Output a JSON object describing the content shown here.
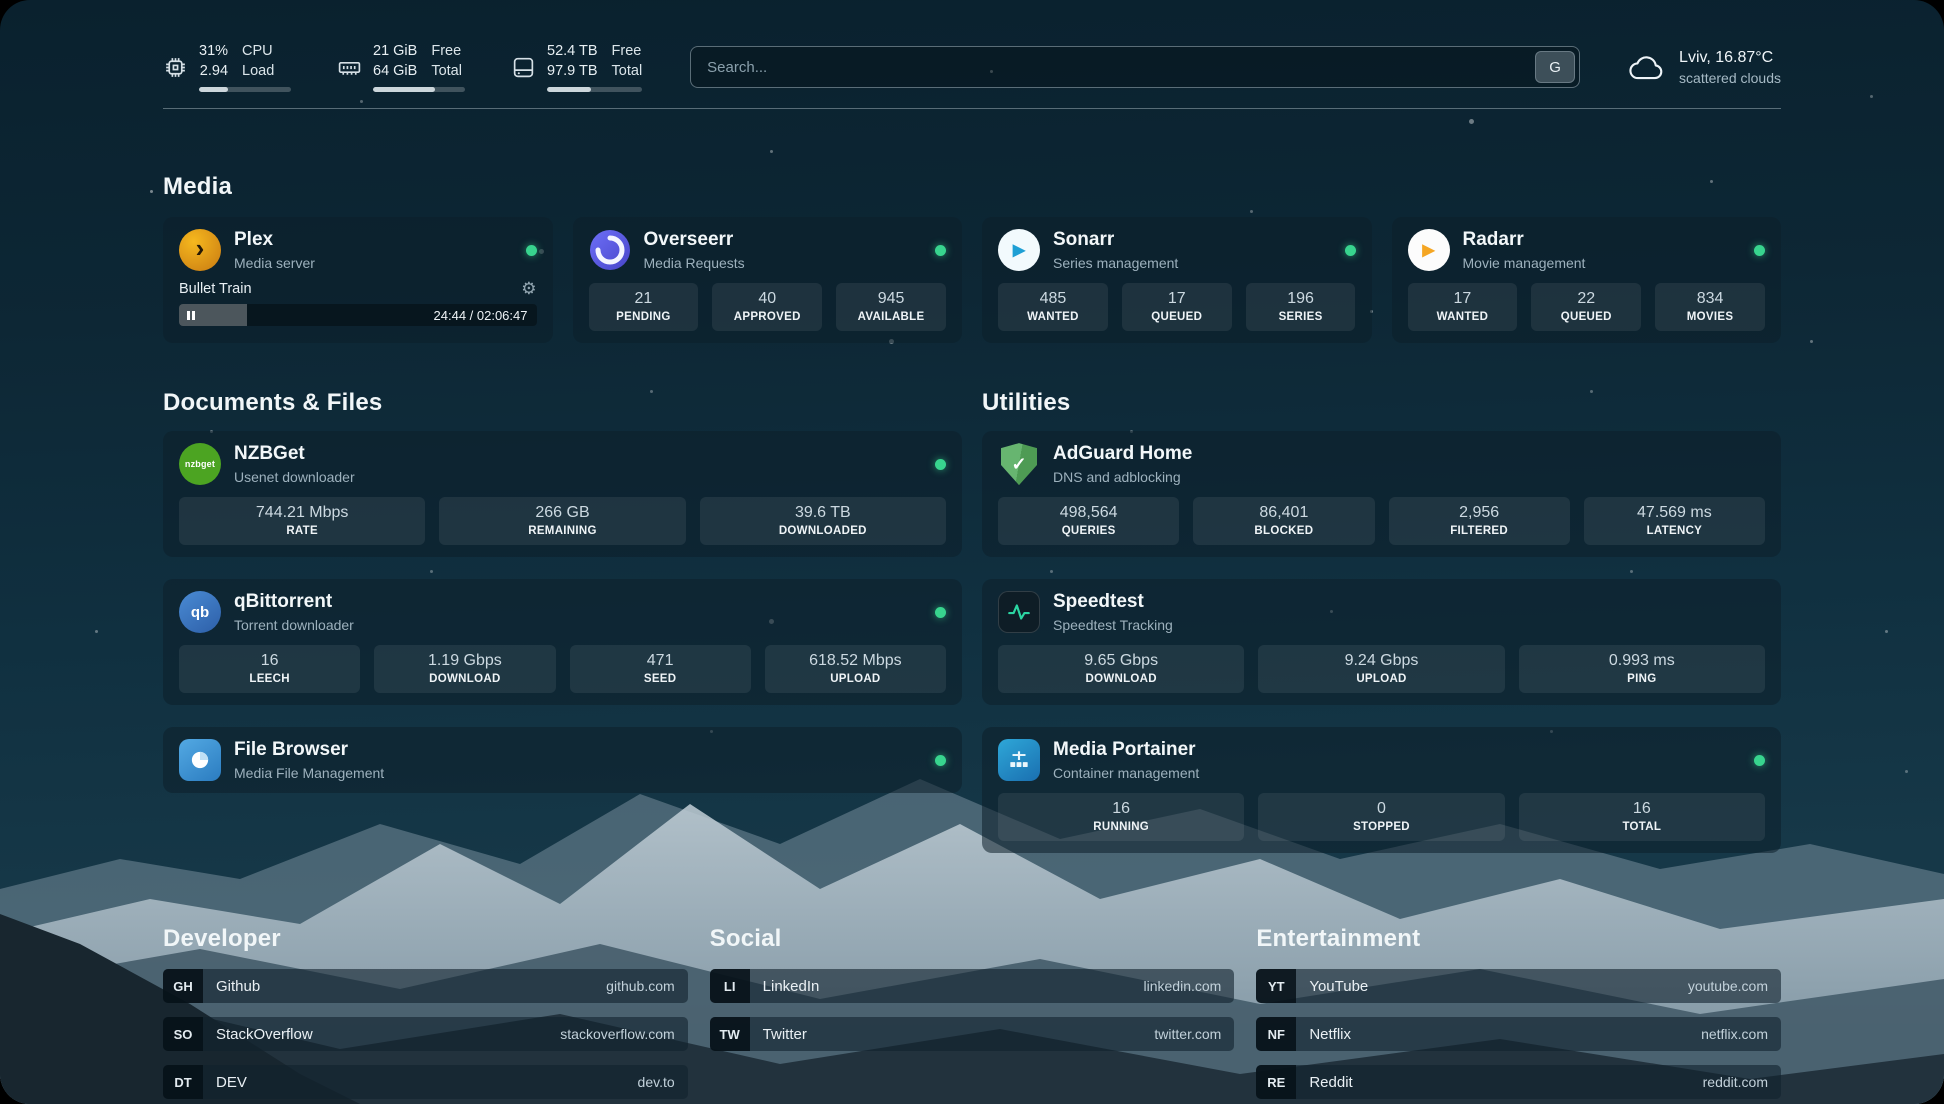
{
  "topbar": {
    "cpu": {
      "percent": "31%",
      "load": "2.94",
      "label1": "CPU",
      "label2": "Load",
      "progress": 31
    },
    "memory": {
      "free": "21 GiB",
      "total": "64 GiB",
      "label1": "Free",
      "label2": "Total",
      "progress": 67
    },
    "disk": {
      "free": "52.4 TB",
      "total": "97.9 TB",
      "label1": "Free",
      "label2": "Total",
      "progress": 46
    },
    "search": {
      "placeholder": "Search...",
      "button_label": "G"
    },
    "weather": {
      "location": "Lviv, 16.87°C",
      "condition": "scattered clouds"
    }
  },
  "sections": {
    "media": {
      "title": "Media"
    },
    "documents": {
      "title": "Documents & Files"
    },
    "utilities": {
      "title": "Utilities"
    },
    "developer": {
      "title": "Developer"
    },
    "social": {
      "title": "Social"
    },
    "entertainment": {
      "title": "Entertainment"
    }
  },
  "icons": {
    "gear": "⚙",
    "play": "▶",
    "chevron": "›",
    "check": "✓"
  },
  "services": {
    "plex": {
      "name": "Plex",
      "desc": "Media server",
      "now_playing": "Bullet Train",
      "time": "24:44 / 02:06:47",
      "progress": 19
    },
    "overseerr": {
      "name": "Overseerr",
      "desc": "Media Requests",
      "stats": [
        {
          "value": "21",
          "label": "PENDING"
        },
        {
          "value": "40",
          "label": "APPROVED"
        },
        {
          "value": "945",
          "label": "AVAILABLE"
        }
      ]
    },
    "sonarr": {
      "name": "Sonarr",
      "desc": "Series management",
      "stats": [
        {
          "value": "485",
          "label": "WANTED"
        },
        {
          "value": "17",
          "label": "QUEUED"
        },
        {
          "value": "196",
          "label": "SERIES"
        }
      ]
    },
    "radarr": {
      "name": "Radarr",
      "desc": "Movie management",
      "stats": [
        {
          "value": "17",
          "label": "WANTED"
        },
        {
          "value": "22",
          "label": "QUEUED"
        },
        {
          "value": "834",
          "label": "MOVIES"
        }
      ]
    },
    "nzbget": {
      "name": "NZBGet",
      "desc": "Usenet downloader",
      "icon_text": "nzbget",
      "stats": [
        {
          "value": "744.21 Mbps",
          "label": "RATE"
        },
        {
          "value": "266 GB",
          "label": "REMAINING"
        },
        {
          "value": "39.6 TB",
          "label": "DOWNLOADED"
        }
      ]
    },
    "qbittorrent": {
      "name": "qBittorrent",
      "desc": "Torrent downloader",
      "icon_text": "qb",
      "stats": [
        {
          "value": "16",
          "label": "LEECH"
        },
        {
          "value": "1.19 Gbps",
          "label": "DOWNLOAD"
        },
        {
          "value": "471",
          "label": "SEED"
        },
        {
          "value": "618.52 Mbps",
          "label": "UPLOAD"
        }
      ]
    },
    "filebrowser": {
      "name": "File Browser",
      "desc": "Media File Management"
    },
    "adguard": {
      "name": "AdGuard Home",
      "desc": "DNS and adblocking",
      "stats": [
        {
          "value": "498,564",
          "label": "QUERIES"
        },
        {
          "value": "86,401",
          "label": "BLOCKED"
        },
        {
          "value": "2,956",
          "label": "FILTERED"
        },
        {
          "value": "47.569 ms",
          "label": "LATENCY"
        }
      ]
    },
    "speedtest": {
      "name": "Speedtest",
      "desc": "Speedtest Tracking",
      "stats": [
        {
          "value": "9.65 Gbps",
          "label": "DOWNLOAD"
        },
        {
          "value": "9.24 Gbps",
          "label": "UPLOAD"
        },
        {
          "value": "0.993 ms",
          "label": "PING"
        }
      ]
    },
    "portainer": {
      "name": "Media Portainer",
      "desc": "Container management",
      "stats": [
        {
          "value": "16",
          "label": "RUNNING"
        },
        {
          "value": "0",
          "label": "STOPPED"
        },
        {
          "value": "16",
          "label": "TOTAL"
        }
      ]
    }
  },
  "bookmarks": {
    "developer": [
      {
        "abbr": "GH",
        "name": "Github",
        "url": "github.com"
      },
      {
        "abbr": "SO",
        "name": "StackOverflow",
        "url": "stackoverflow.com"
      },
      {
        "abbr": "DT",
        "name": "DEV",
        "url": "dev.to"
      }
    ],
    "social": [
      {
        "abbr": "LI",
        "name": "LinkedIn",
        "url": "linkedin.com"
      },
      {
        "abbr": "TW",
        "name": "Twitter",
        "url": "twitter.com"
      }
    ],
    "entertainment": [
      {
        "abbr": "YT",
        "name": "YouTube",
        "url": "youtube.com"
      },
      {
        "abbr": "NF",
        "name": "Netflix",
        "url": "netflix.com"
      },
      {
        "abbr": "RE",
        "name": "Reddit",
        "url": "reddit.com"
      }
    ]
  },
  "colors": {
    "status_green": "#38d48e",
    "card_bg": "#0d1f29",
    "accent_amber": "#e5a00d"
  }
}
